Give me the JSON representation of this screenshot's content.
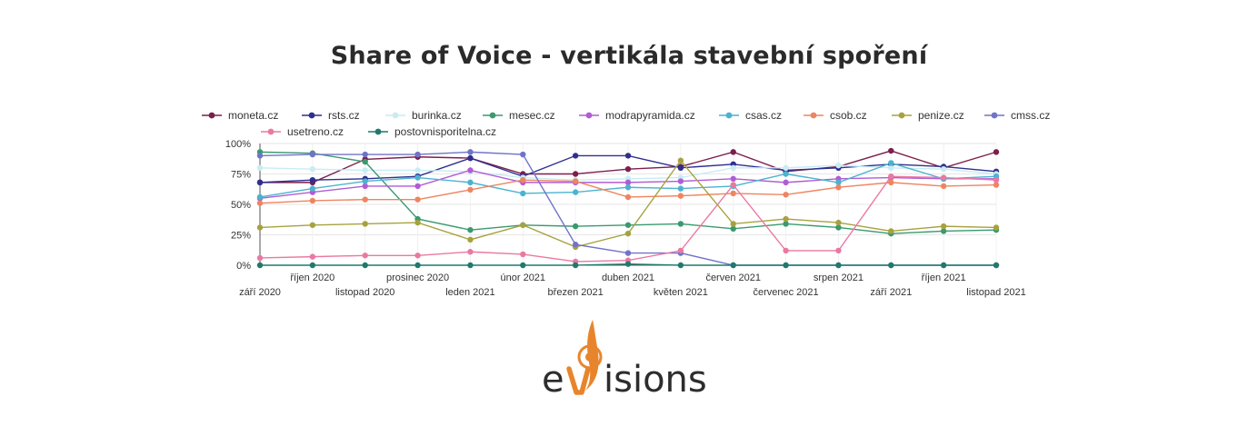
{
  "page": {
    "title": "Share of Voice - vertikála stavební spoření",
    "logo_text": "evisions",
    "logo_color": "#e8852c"
  },
  "chart_data": {
    "type": "line",
    "title": "Share of Voice - vertikála stavební spoření",
    "xlabel": "",
    "ylabel": "",
    "ylim": [
      0,
      100
    ],
    "y_ticks": [
      "100%",
      "75%",
      "50%",
      "25%",
      "0%"
    ],
    "y_tick_values": [
      100,
      75,
      50,
      25,
      0
    ],
    "grid": true,
    "legend_position": "top",
    "categories": [
      "září 2020",
      "říjen 2020",
      "listopad 2020",
      "prosinec 2020",
      "leden 2021",
      "únor 2021",
      "březen 2021",
      "duben 2021",
      "květen 2021",
      "červen 2021",
      "červenec 2021",
      "srpen 2021",
      "září 2021",
      "říjen 2021",
      "listopad 2021"
    ],
    "series": [
      {
        "name": "moneta.cz",
        "color": "#7b1f4d",
        "values": [
          68,
          68,
          87,
          89,
          88,
          75,
          75,
          79,
          81,
          93,
          77,
          81,
          94,
          80,
          93
        ]
      },
      {
        "name": "rsts.cz",
        "color": "#2e2f8f",
        "values": [
          68,
          70,
          71,
          73,
          88,
          73,
          90,
          90,
          80,
          83,
          78,
          80,
          83,
          81,
          77
        ]
      },
      {
        "name": "burinka.cz",
        "color": "#c8ecf4",
        "values": [
          80,
          79,
          78,
          78,
          77,
          72,
          70,
          71,
          72,
          80,
          80,
          82,
          80,
          79,
          75
        ]
      },
      {
        "name": "mesec.cz",
        "color": "#3a9a6e",
        "values": [
          93,
          92,
          85,
          38,
          29,
          33,
          32,
          33,
          34,
          30,
          34,
          31,
          26,
          28,
          29
        ]
      },
      {
        "name": "modrapyramida.cz",
        "color": "#b15cd6",
        "values": [
          55,
          60,
          65,
          65,
          78,
          68,
          68,
          68,
          69,
          71,
          68,
          71,
          72,
          71,
          71
        ]
      },
      {
        "name": "csas.cz",
        "color": "#4bb3cf",
        "values": [
          56,
          63,
          69,
          72,
          68,
          59,
          60,
          64,
          63,
          65,
          75,
          68,
          84,
          71,
          73
        ]
      },
      {
        "name": "csob.cz",
        "color": "#ee8560",
        "values": [
          51,
          53,
          54,
          54,
          62,
          70,
          69,
          56,
          57,
          59,
          58,
          64,
          68,
          65,
          66
        ]
      },
      {
        "name": "penize.cz",
        "color": "#a7a23f",
        "values": [
          31,
          33,
          34,
          35,
          21,
          33,
          15,
          26,
          86,
          34,
          38,
          35,
          28,
          32,
          31
        ]
      },
      {
        "name": "cmss.cz",
        "color": "#7073c8",
        "values": [
          90,
          91,
          91,
          91,
          93,
          91,
          17,
          10,
          10,
          0,
          0,
          0,
          0,
          0,
          0
        ]
      },
      {
        "name": "usetreno.cz",
        "color": "#ea79a2",
        "values": [
          6,
          7,
          8,
          8,
          11,
          9,
          3,
          4,
          12,
          66,
          12,
          12,
          73,
          72,
          70
        ]
      },
      {
        "name": "postovnisporitelna.cz",
        "color": "#1f7a6e",
        "values": [
          0,
          0,
          0,
          0,
          0,
          0,
          0,
          1,
          0,
          0,
          0,
          0,
          0,
          0,
          0
        ]
      }
    ]
  }
}
